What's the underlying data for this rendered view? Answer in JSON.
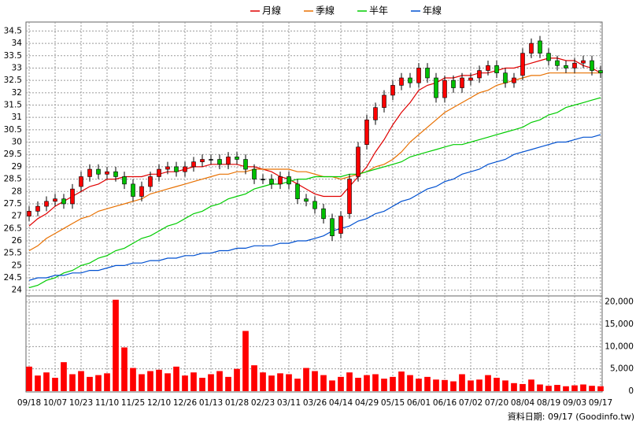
{
  "chart_data": {
    "type": "candlestick",
    "categories": [
      "09/18",
      null,
      null,
      "10/07",
      null,
      null,
      "10/23",
      null,
      null,
      "11/10",
      null,
      null,
      "11/25",
      null,
      null,
      "12/10",
      null,
      null,
      "12/26",
      null,
      null,
      "01/13",
      null,
      null,
      "01/28",
      null,
      null,
      "02/23",
      null,
      null,
      "03/11",
      null,
      null,
      "03/26",
      null,
      null,
      "04/14",
      null,
      null,
      "04/29",
      null,
      null,
      "05/15",
      null,
      null,
      "06/01",
      null,
      null,
      "06/16",
      null,
      null,
      "07/02",
      null,
      null,
      "07/20",
      null,
      null,
      "08/04",
      null,
      null,
      "08/19",
      null,
      null,
      "09/03",
      null,
      null,
      "09/17"
    ],
    "open": [
      27.0,
      27.2,
      27.4,
      27.6,
      27.7,
      27.5,
      28.2,
      28.6,
      28.9,
      28.7,
      28.8,
      28.6,
      28.3,
      27.8,
      28.2,
      28.6,
      28.9,
      29.0,
      28.8,
      29.0,
      29.2,
      29.3,
      29.3,
      29.1,
      29.4,
      29.3,
      28.9,
      28.5,
      28.5,
      28.3,
      28.6,
      28.3,
      27.7,
      27.6,
      27.3,
      26.9,
      26.3,
      27.1,
      28.6,
      29.9,
      30.9,
      31.4,
      31.9,
      32.3,
      32.6,
      32.4,
      33.0,
      32.6,
      31.8,
      32.5,
      32.2,
      32.5,
      32.6,
      32.9,
      33.1,
      32.8,
      32.4,
      32.7,
      33.6,
      34.1,
      33.6,
      33.3,
      33.1,
      33.0,
      33.2,
      33.3,
      32.9
    ],
    "high": [
      27.4,
      27.6,
      27.8,
      27.9,
      27.9,
      28.3,
      28.8,
      29.1,
      29.1,
      29.0,
      29.0,
      28.8,
      28.5,
      28.4,
      28.8,
      29.1,
      29.2,
      29.2,
      29.2,
      29.4,
      29.5,
      29.5,
      29.5,
      29.6,
      29.6,
      29.5,
      29.1,
      28.7,
      28.7,
      28.8,
      28.8,
      28.5,
      27.9,
      27.8,
      27.5,
      27.1,
      27.2,
      28.7,
      30.0,
      31.1,
      31.6,
      32.1,
      32.5,
      32.8,
      32.8,
      33.2,
      33.2,
      32.8,
      32.7,
      32.7,
      32.8,
      32.8,
      33.1,
      33.3,
      33.3,
      33.0,
      32.8,
      33.8,
      34.2,
      34.3,
      33.8,
      33.5,
      33.3,
      33.4,
      33.5,
      33.5,
      33.1
    ],
    "low": [
      26.8,
      27.0,
      27.2,
      27.4,
      27.3,
      27.3,
      28.0,
      28.4,
      28.5,
      28.5,
      28.4,
      28.1,
      27.6,
      27.6,
      28.0,
      28.4,
      28.7,
      28.6,
      28.6,
      28.8,
      29.0,
      29.1,
      28.9,
      28.9,
      29.1,
      28.7,
      28.3,
      28.3,
      28.1,
      28.1,
      28.1,
      27.5,
      27.4,
      27.1,
      26.7,
      26.0,
      26.1,
      26.9,
      28.4,
      29.7,
      30.7,
      31.2,
      31.7,
      32.1,
      32.2,
      32.2,
      32.4,
      31.6,
      31.6,
      32.0,
      32.0,
      32.3,
      32.4,
      32.7,
      32.6,
      32.2,
      32.2,
      32.5,
      33.4,
      33.4,
      33.1,
      32.9,
      32.8,
      32.8,
      33.0,
      32.7,
      32.6
    ],
    "close": [
      27.2,
      27.4,
      27.6,
      27.7,
      27.5,
      28.1,
      28.6,
      28.9,
      28.7,
      28.8,
      28.6,
      28.3,
      27.8,
      28.2,
      28.6,
      28.9,
      29.0,
      28.8,
      29.0,
      29.2,
      29.3,
      29.3,
      29.1,
      29.4,
      29.3,
      28.9,
      28.5,
      28.5,
      28.3,
      28.6,
      28.3,
      27.7,
      27.6,
      27.3,
      26.9,
      26.2,
      27.0,
      28.5,
      29.8,
      30.9,
      31.4,
      31.9,
      32.3,
      32.6,
      32.4,
      33.0,
      32.6,
      31.8,
      32.5,
      32.2,
      32.6,
      32.6,
      32.9,
      33.1,
      32.8,
      32.4,
      32.6,
      33.6,
      34.0,
      33.6,
      33.3,
      33.1,
      33.0,
      33.2,
      33.3,
      32.9,
      32.8
    ],
    "up_color": "#ff0000",
    "down_color": "#00c000",
    "ylim": [
      23.8,
      34.8
    ],
    "yticks": [
      24,
      24.5,
      25,
      25.5,
      26,
      26.5,
      27,
      27.5,
      28,
      28.5,
      29,
      29.5,
      30,
      30.5,
      31,
      31.5,
      32,
      32.5,
      33,
      33.5,
      34,
      34.5
    ],
    "series": [
      {
        "name": "月線",
        "color": "#e00000",
        "values": [
          26.6,
          26.9,
          27.1,
          27.4,
          27.6,
          27.8,
          28.0,
          28.2,
          28.3,
          28.5,
          28.5,
          28.6,
          28.6,
          28.6,
          28.7,
          28.7,
          28.8,
          28.8,
          28.9,
          29.0,
          29.0,
          29.1,
          29.1,
          29.1,
          29.1,
          29.0,
          29.0,
          28.9,
          28.8,
          28.6,
          28.5,
          28.3,
          28.1,
          27.9,
          27.8,
          27.8,
          27.8,
          28.2,
          28.6,
          29.0,
          29.6,
          30.1,
          30.7,
          31.2,
          31.6,
          32.1,
          32.3,
          32.4,
          32.6,
          32.6,
          32.7,
          32.7,
          32.8,
          32.8,
          32.9,
          33.0,
          33.0,
          33.1,
          33.2,
          33.3,
          33.4,
          33.4,
          33.3,
          33.3,
          33.1,
          33.0,
          32.8
        ]
      },
      {
        "name": "季線",
        "color": "#e87000",
        "values": [
          25.6,
          25.8,
          26.1,
          26.3,
          26.5,
          26.7,
          26.9,
          27.0,
          27.2,
          27.3,
          27.4,
          27.5,
          27.6,
          27.7,
          27.9,
          28.0,
          28.1,
          28.2,
          28.3,
          28.4,
          28.5,
          28.6,
          28.7,
          28.7,
          28.8,
          28.8,
          28.9,
          28.9,
          28.9,
          28.9,
          28.9,
          28.8,
          28.8,
          28.7,
          28.6,
          28.6,
          28.5,
          28.6,
          28.7,
          28.8,
          29.0,
          29.1,
          29.3,
          29.6,
          30.0,
          30.3,
          30.6,
          30.9,
          31.2,
          31.4,
          31.6,
          31.8,
          32.0,
          32.1,
          32.3,
          32.4,
          32.5,
          32.6,
          32.7,
          32.7,
          32.8,
          32.8,
          32.8,
          32.8,
          32.8,
          32.8,
          32.8
        ]
      },
      {
        "name": "半年",
        "color": "#00cc00",
        "values": [
          24.1,
          24.2,
          24.4,
          24.5,
          24.7,
          24.8,
          25.0,
          25.1,
          25.3,
          25.4,
          25.6,
          25.7,
          25.9,
          26.1,
          26.2,
          26.4,
          26.6,
          26.7,
          26.9,
          27.1,
          27.2,
          27.4,
          27.5,
          27.7,
          27.8,
          27.9,
          28.1,
          28.2,
          28.3,
          28.3,
          28.4,
          28.5,
          28.5,
          28.6,
          28.6,
          28.6,
          28.6,
          28.7,
          28.7,
          28.8,
          28.9,
          29.0,
          29.1,
          29.2,
          29.4,
          29.5,
          29.6,
          29.7,
          29.8,
          29.9,
          29.9,
          30.0,
          30.1,
          30.2,
          30.3,
          30.4,
          30.5,
          30.6,
          30.8,
          30.9,
          31.1,
          31.2,
          31.4,
          31.5,
          31.6,
          31.7,
          31.8
        ]
      },
      {
        "name": "年線",
        "color": "#0050d0",
        "values": [
          24.4,
          24.5,
          24.5,
          24.6,
          24.6,
          24.7,
          24.7,
          24.8,
          24.8,
          24.9,
          25.0,
          25.0,
          25.1,
          25.1,
          25.2,
          25.2,
          25.3,
          25.3,
          25.4,
          25.4,
          25.5,
          25.5,
          25.6,
          25.6,
          25.7,
          25.7,
          25.8,
          25.8,
          25.8,
          25.9,
          25.9,
          26.0,
          26.0,
          26.1,
          26.2,
          26.4,
          26.5,
          26.6,
          26.8,
          26.9,
          27.1,
          27.2,
          27.4,
          27.6,
          27.7,
          27.9,
          28.1,
          28.2,
          28.4,
          28.5,
          28.7,
          28.8,
          28.9,
          29.1,
          29.2,
          29.3,
          29.5,
          29.6,
          29.7,
          29.8,
          29.9,
          30.0,
          30.0,
          30.1,
          30.2,
          30.2,
          30.3
        ]
      }
    ],
    "volume": {
      "color": "#ff0000",
      "values": [
        5500,
        3500,
        4200,
        3000,
        6500,
        3800,
        4500,
        3200,
        3600,
        4000,
        20500,
        9800,
        5200,
        3800,
        4500,
        4800,
        4000,
        5500,
        3500,
        4200,
        3000,
        3800,
        4500,
        3200,
        5000,
        13500,
        5800,
        4200,
        3500,
        4000,
        3800,
        2800,
        5200,
        4500,
        3600,
        2400,
        3200,
        4200,
        3000,
        3600,
        3800,
        2800,
        3200,
        4400,
        3600,
        2800,
        3200,
        2600,
        2500,
        2200,
        3800,
        2400,
        2600,
        3600,
        3000,
        2400,
        1800,
        1600,
        2600,
        1500,
        1200,
        1400,
        1100,
        1300,
        1500,
        1200,
        1100
      ],
      "ylim": [
        0,
        21000
      ],
      "yticks": [
        0,
        {
          "value": 5000,
          "label": "5,000"
        },
        {
          "value": 10000,
          "label": "10,000"
        },
        {
          "value": 15000,
          "label": "15,000"
        },
        {
          "value": 20000,
          "label": "20,000"
        }
      ]
    },
    "grid": true,
    "legend": "top",
    "footer": "資料日期: 09/17  (Goodinfo.tw)"
  }
}
